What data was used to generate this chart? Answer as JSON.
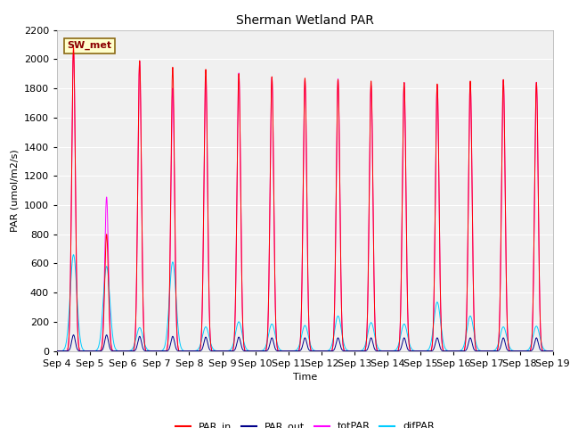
{
  "title": "Sherman Wetland PAR",
  "ylabel": "PAR (umol/m2/s)",
  "xlabel": "Time",
  "annotation": "SW_met",
  "ylim": [
    0,
    2200
  ],
  "num_days": 15,
  "xtick_labels": [
    "Sep 4",
    "Sep 5",
    "Sep 6",
    "Sep 7",
    "Sep 8",
    "Sep 9",
    "Sep 10",
    "Sep 11",
    "Sep 12",
    "Sep 13",
    "Sep 14",
    "Sep 15",
    "Sep 16",
    "Sep 17",
    "Sep 18",
    "Sep 19"
  ],
  "legend_entries": [
    "PAR_in",
    "PAR_out",
    "totPAR",
    "difPAR"
  ],
  "legend_colors": [
    "#ff0000",
    "#00008b",
    "#ff00ff",
    "#00ccff"
  ],
  "line_colors": {
    "PAR_in": "#ff0000",
    "PAR_out": "#00008b",
    "totPAR": "#ff00ff",
    "difPAR": "#00ccff"
  },
  "fig_bg_color": "#ffffff",
  "plot_bg_color": "#f0f0f0",
  "grid_color": "#ffffff",
  "par_in_peaks": [
    2080,
    800,
    1990,
    1945,
    1930,
    1900,
    1880,
    1870,
    1860,
    1850,
    1840,
    1830,
    1850,
    1860,
    1840
  ],
  "par_out_peaks": [
    110,
    110,
    100,
    100,
    95,
    95,
    90,
    90,
    90,
    90,
    90,
    90,
    90,
    90,
    90
  ],
  "tot_par_peaks": [
    2080,
    1055,
    1985,
    1800,
    1885,
    1905,
    1875,
    1855,
    1865,
    1820,
    1840,
    1820,
    1840,
    1858,
    1842
  ],
  "dif_par_peaks": [
    660,
    580,
    160,
    610,
    165,
    200,
    185,
    175,
    240,
    195,
    185,
    335,
    240,
    165,
    170
  ],
  "par_in_sigma": 0.055,
  "tot_par_sigma": 0.055,
  "par_out_sigma": 0.055,
  "dif_par_sigma": 0.1,
  "yticks": [
    0,
    200,
    400,
    600,
    800,
    1000,
    1200,
    1400,
    1600,
    1800,
    2000,
    2200
  ]
}
